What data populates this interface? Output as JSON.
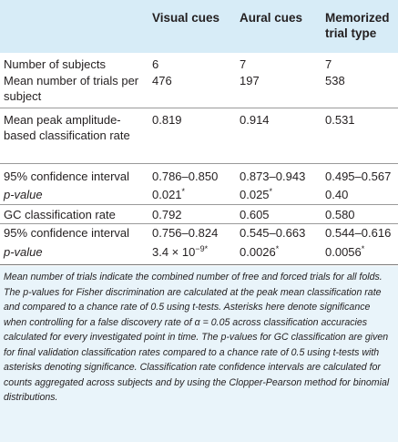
{
  "columns": [
    "Visual cues",
    "Aural cues",
    "Memorized trial type"
  ],
  "rows": [
    {
      "label": "Number of subjects",
      "v1": "6",
      "v2": "7",
      "v3": "7"
    },
    {
      "label": "Mean number of trials per subject",
      "v1": "476",
      "v2": "197",
      "v3": "538"
    },
    {
      "label": "Mean peak amplitude-based classification rate",
      "v1": "0.819",
      "v2": "0.914",
      "v3": "0.531"
    },
    {
      "label": "95% confidence interval",
      "v1": "0.786–0.850",
      "v2": "0.873–0.943",
      "v3": "0.495–0.567"
    },
    {
      "label": "p-value",
      "v1": "0.021",
      "v2": "0.025",
      "v3": "0.40"
    },
    {
      "label": "GC classification rate",
      "v1": "0.792",
      "v2": "0.605",
      "v3": "0.580"
    },
    {
      "label": "95% confidence interval",
      "v1": "0.756–0.824",
      "v2": "0.545–0.663",
      "v3": "0.544–0.616"
    },
    {
      "label": "p-value",
      "v1": "3.4 × 10",
      "v1_exp": "−9",
      "v2": "0.0026",
      "v3": "0.0056"
    }
  ],
  "asterisk": "*",
  "footnote": "Mean number of trials indicate the combined number of free and forced trials for all folds. The p-values for Fisher discrimination are calculated at the peak mean classification rate and compared to a chance rate of 0.5 using t-tests. Asterisks here denote significance when controlling for a false discovery rate of α = 0.05 across classification accuracies calculated for every investigated point in time. The p-values for GC classification are given for final validation classification rates compared to a chance rate of 0.5 using t-tests with asterisks denoting significance. Classification rate confidence intervals are calculated for counts aggregated across subjects and by using the Clopper-Pearson method for binomial distributions."
}
